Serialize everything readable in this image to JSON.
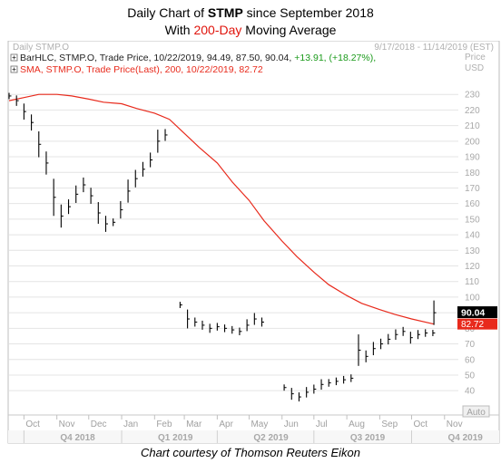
{
  "title": {
    "line1_prefix": "Daily Chart of ",
    "line1_ticker": "STMP",
    "line1_suffix": " since September 2018",
    "line2_prefix": "With ",
    "line2_highlight": "200-Day",
    "line2_suffix": " Moving Average"
  },
  "header": {
    "chart_name": "Daily STMP.O",
    "date_range": "9/17/2018 - 11/14/2019 (EST)"
  },
  "legend": {
    "bar_text": "BarHLC, STMP.O, Trade Price, 10/22/2019, 94.49, 87.50, 90.04,",
    "bar_change": "+13.91, (+18.27%),",
    "sma_text": "SMA, STMP.O, Trade Price(Last),  200,  10/22/2019, 82.72"
  },
  "credit": "Chart courtesy of Thomson Reuters Eikon",
  "chart_data": {
    "type": "line",
    "yaxis_label": "Price",
    "yaxis_unit": "USD",
    "ylim": [
      25,
      240
    ],
    "yticks": [
      40,
      50,
      60,
      70,
      80,
      90,
      100,
      110,
      120,
      130,
      140,
      150,
      160,
      170,
      180,
      190,
      200,
      210,
      220,
      230
    ],
    "x_months": [
      "Oct",
      "Nov",
      "Dec",
      "Jan",
      "Feb",
      "Mar",
      "Apr",
      "May",
      "Jun",
      "Jul",
      "Aug",
      "Sep",
      "Oct",
      "Nov"
    ],
    "x_quarters": [
      "Q4 2018",
      "Q1 2019",
      "Q2 2019",
      "Q3 2019",
      "Q4 2019"
    ],
    "last_price_label": "90.04",
    "sma_label": "82.72",
    "auto_label": "Auto",
    "colors": {
      "price": "#000000",
      "sma": "#e82a1c",
      "grid": "#e0e0e0",
      "bar_change": "#1a9a1a"
    },
    "series": [
      {
        "name": "STMP.O",
        "kind": "price",
        "x": [
          "2018-09-17",
          "2018-09-24",
          "2018-10-01",
          "2018-10-08",
          "2018-10-15",
          "2018-10-22",
          "2018-10-29",
          "2018-11-05",
          "2018-11-12",
          "2018-11-19",
          "2018-11-26",
          "2018-12-03",
          "2018-12-10",
          "2018-12-17",
          "2018-12-24",
          "2018-12-31",
          "2019-01-07",
          "2019-01-14",
          "2019-01-21",
          "2019-01-28",
          "2019-02-04",
          "2019-02-11",
          "2019-02-18",
          "2019-02-25",
          "2019-03-04",
          "2019-03-11",
          "2019-03-18",
          "2019-03-25",
          "2019-04-01",
          "2019-04-08",
          "2019-04-15",
          "2019-04-22",
          "2019-04-29",
          "2019-05-06",
          "2019-05-13",
          "2019-05-20",
          "2019-05-27",
          "2019-06-03",
          "2019-06-10",
          "2019-06-17",
          "2019-06-24",
          "2019-07-01",
          "2019-07-08",
          "2019-07-15",
          "2019-07-22",
          "2019-07-29",
          "2019-08-05",
          "2019-08-12",
          "2019-08-19",
          "2019-08-26",
          "2019-09-02",
          "2019-09-09",
          "2019-09-16",
          "2019-09-23",
          "2019-09-30",
          "2019-10-07",
          "2019-10-14",
          "2019-10-21",
          "2019-10-22"
        ],
        "values": [
          229,
          226,
          219,
          212,
          198,
          186,
          164,
          152,
          158,
          166,
          172,
          165,
          154,
          147,
          148,
          156,
          168,
          176,
          182,
          188,
          200,
          204,
          null,
          95,
          86,
          84,
          82,
          80,
          81,
          80,
          79,
          78,
          82,
          86,
          84,
          null,
          null,
          42,
          38,
          36,
          39,
          41,
          44,
          45,
          46,
          47,
          48,
          66,
          62,
          67,
          70,
          73,
          76,
          78,
          74,
          76,
          77,
          77,
          90
        ]
      },
      {
        "name": "200-Day SMA",
        "kind": "sma",
        "x": [
          "2018-09-17",
          "2018-10-01",
          "2018-10-15",
          "2018-11-01",
          "2018-11-15",
          "2018-12-01",
          "2018-12-15",
          "2019-01-01",
          "2019-01-15",
          "2019-02-01",
          "2019-02-15",
          "2019-03-01",
          "2019-03-15",
          "2019-04-01",
          "2019-04-15",
          "2019-05-01",
          "2019-05-15",
          "2019-06-01",
          "2019-06-15",
          "2019-07-01",
          "2019-07-15",
          "2019-08-01",
          "2019-08-15",
          "2019-09-01",
          "2019-09-15",
          "2019-10-01",
          "2019-10-22"
        ],
        "values": [
          226,
          228,
          230,
          230,
          229,
          227,
          225,
          224,
          221,
          218,
          214,
          205,
          196,
          186,
          174,
          162,
          149,
          136,
          126,
          116,
          108,
          101,
          96,
          92,
          89,
          86,
          82.72
        ]
      }
    ]
  }
}
